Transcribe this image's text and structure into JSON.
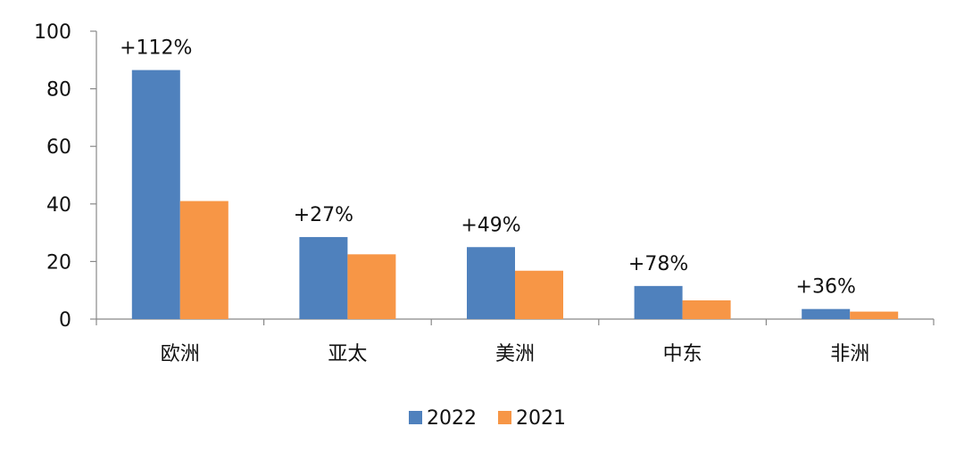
{
  "chart_data": {
    "type": "bar",
    "categories": [
      "欧洲",
      "亚太",
      "美洲",
      "中东",
      "非洲"
    ],
    "series": [
      {
        "name": "2022",
        "color": "#4F81BD",
        "values": [
          86.5,
          28.5,
          25,
          11.5,
          3.5
        ]
      },
      {
        "name": "2021",
        "color": "#F79646",
        "values": [
          41,
          22.5,
          16.8,
          6.5,
          2.6
        ]
      }
    ],
    "annotations": [
      "+112%",
      "+27%",
      "+49%",
      "+78%",
      "+36%"
    ],
    "ylim": [
      0,
      100
    ],
    "yticks": [
      0,
      20,
      40,
      60,
      80,
      100
    ],
    "grid": false,
    "legend": "bottom",
    "xlabel": "",
    "ylabel": "",
    "title": ""
  }
}
